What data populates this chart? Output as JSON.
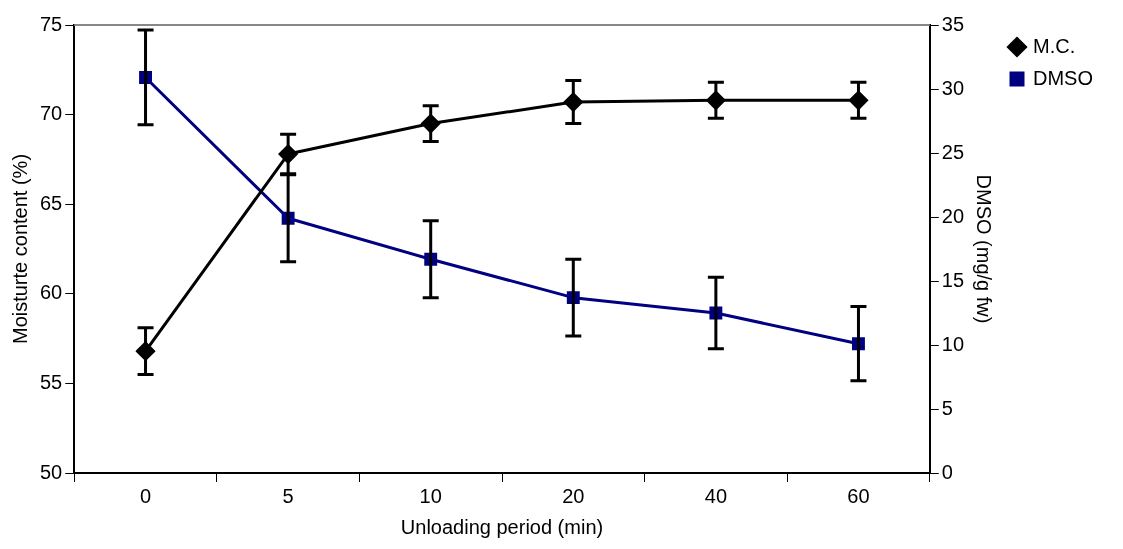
{
  "chart_data": {
    "type": "line",
    "xlabel": "Unloading period (min)",
    "ylabel": "Moisturte content (%)",
    "y2label": "DMSO (mg/g fw)",
    "categories": [
      "0",
      "5",
      "10",
      "20",
      "40",
      "60"
    ],
    "ylim": [
      50,
      75
    ],
    "yticks": [
      50,
      55,
      60,
      65,
      70,
      75
    ],
    "y2lim": [
      0,
      35
    ],
    "y2ticks": [
      0,
      5,
      10,
      15,
      20,
      25,
      30,
      35
    ],
    "grid": false,
    "legend": "right",
    "series": [
      {
        "name": "M.C.",
        "color": "#000000",
        "marker": "diamond",
        "values": [
          56.8,
          67.8,
          69.5,
          70.7,
          70.8,
          70.8
        ],
        "errors": [
          1.3,
          1.1,
          1.0,
          1.2,
          1.0,
          1.0
        ]
      },
      {
        "name": "DMSO",
        "color": "#000080",
        "marker": "square",
        "axis": "y2",
        "values": [
          30.9,
          19.9,
          16.7,
          13.7,
          12.5,
          10.1
        ],
        "errors": [
          3.7,
          3.4,
          3.0,
          3.0,
          2.8,
          2.9
        ]
      }
    ]
  }
}
